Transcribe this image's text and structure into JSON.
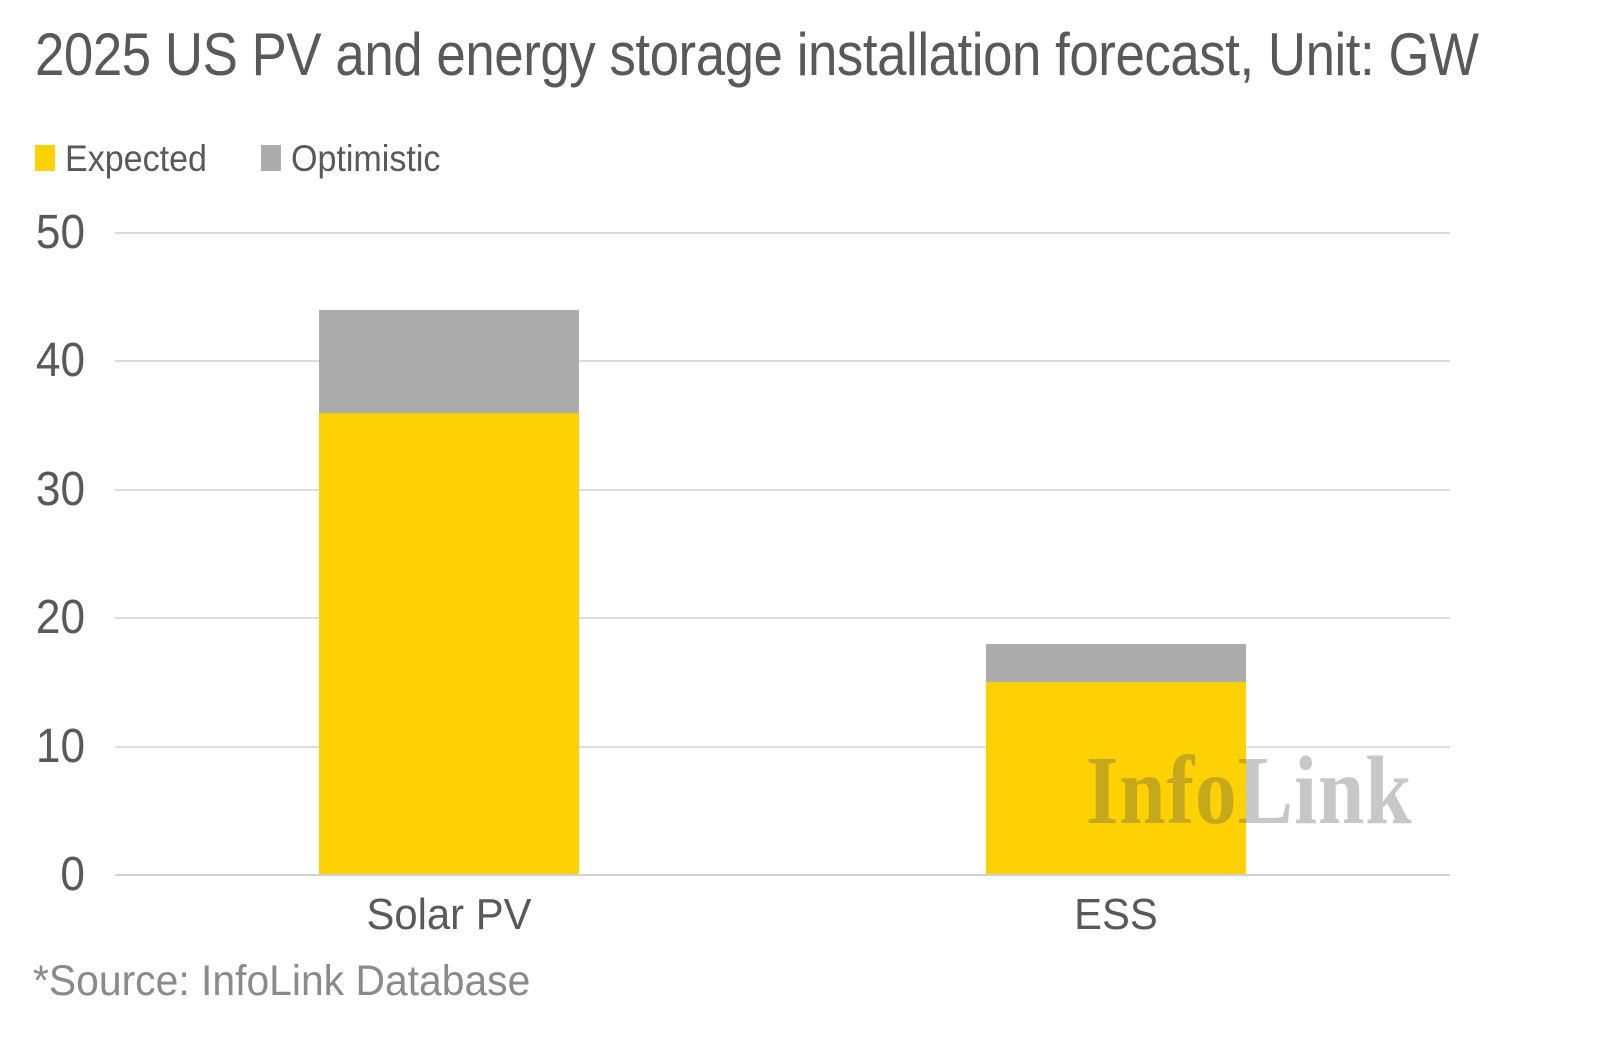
{
  "title": "2025 US PV and energy storage installation forecast, Unit: GW",
  "source_note": "*Source: InfoLink Database",
  "watermark": "InfoLink",
  "colors": {
    "expected": "#FDD104",
    "optimistic": "#ACACAC",
    "gridline": "#DCDCDC",
    "text_dark": "#595959",
    "text_muted": "#8A8A8A",
    "background": "#FFFFFF"
  },
  "chart_data": {
    "type": "bar",
    "subtype": "stacked",
    "title": "2025 US PV and energy storage installation forecast, Unit: GW",
    "categories": [
      "Solar PV",
      "ESS"
    ],
    "series": [
      {
        "name": "Expected",
        "color": "#FDD104",
        "values": [
          36,
          15
        ]
      },
      {
        "name": "Optimistic",
        "color": "#ACACAC",
        "values": [
          44,
          18
        ],
        "note": "values are bar tops; gray segment drawn from Expected value up to Optimistic value"
      }
    ],
    "xlabel": "",
    "ylabel": "",
    "unit": "GW",
    "ylim": [
      0,
      50
    ],
    "ytick_step": 10,
    "yticks": [
      0,
      10,
      20,
      30,
      40,
      50
    ],
    "grid": "horizontal",
    "legend_position": "top-left"
  }
}
